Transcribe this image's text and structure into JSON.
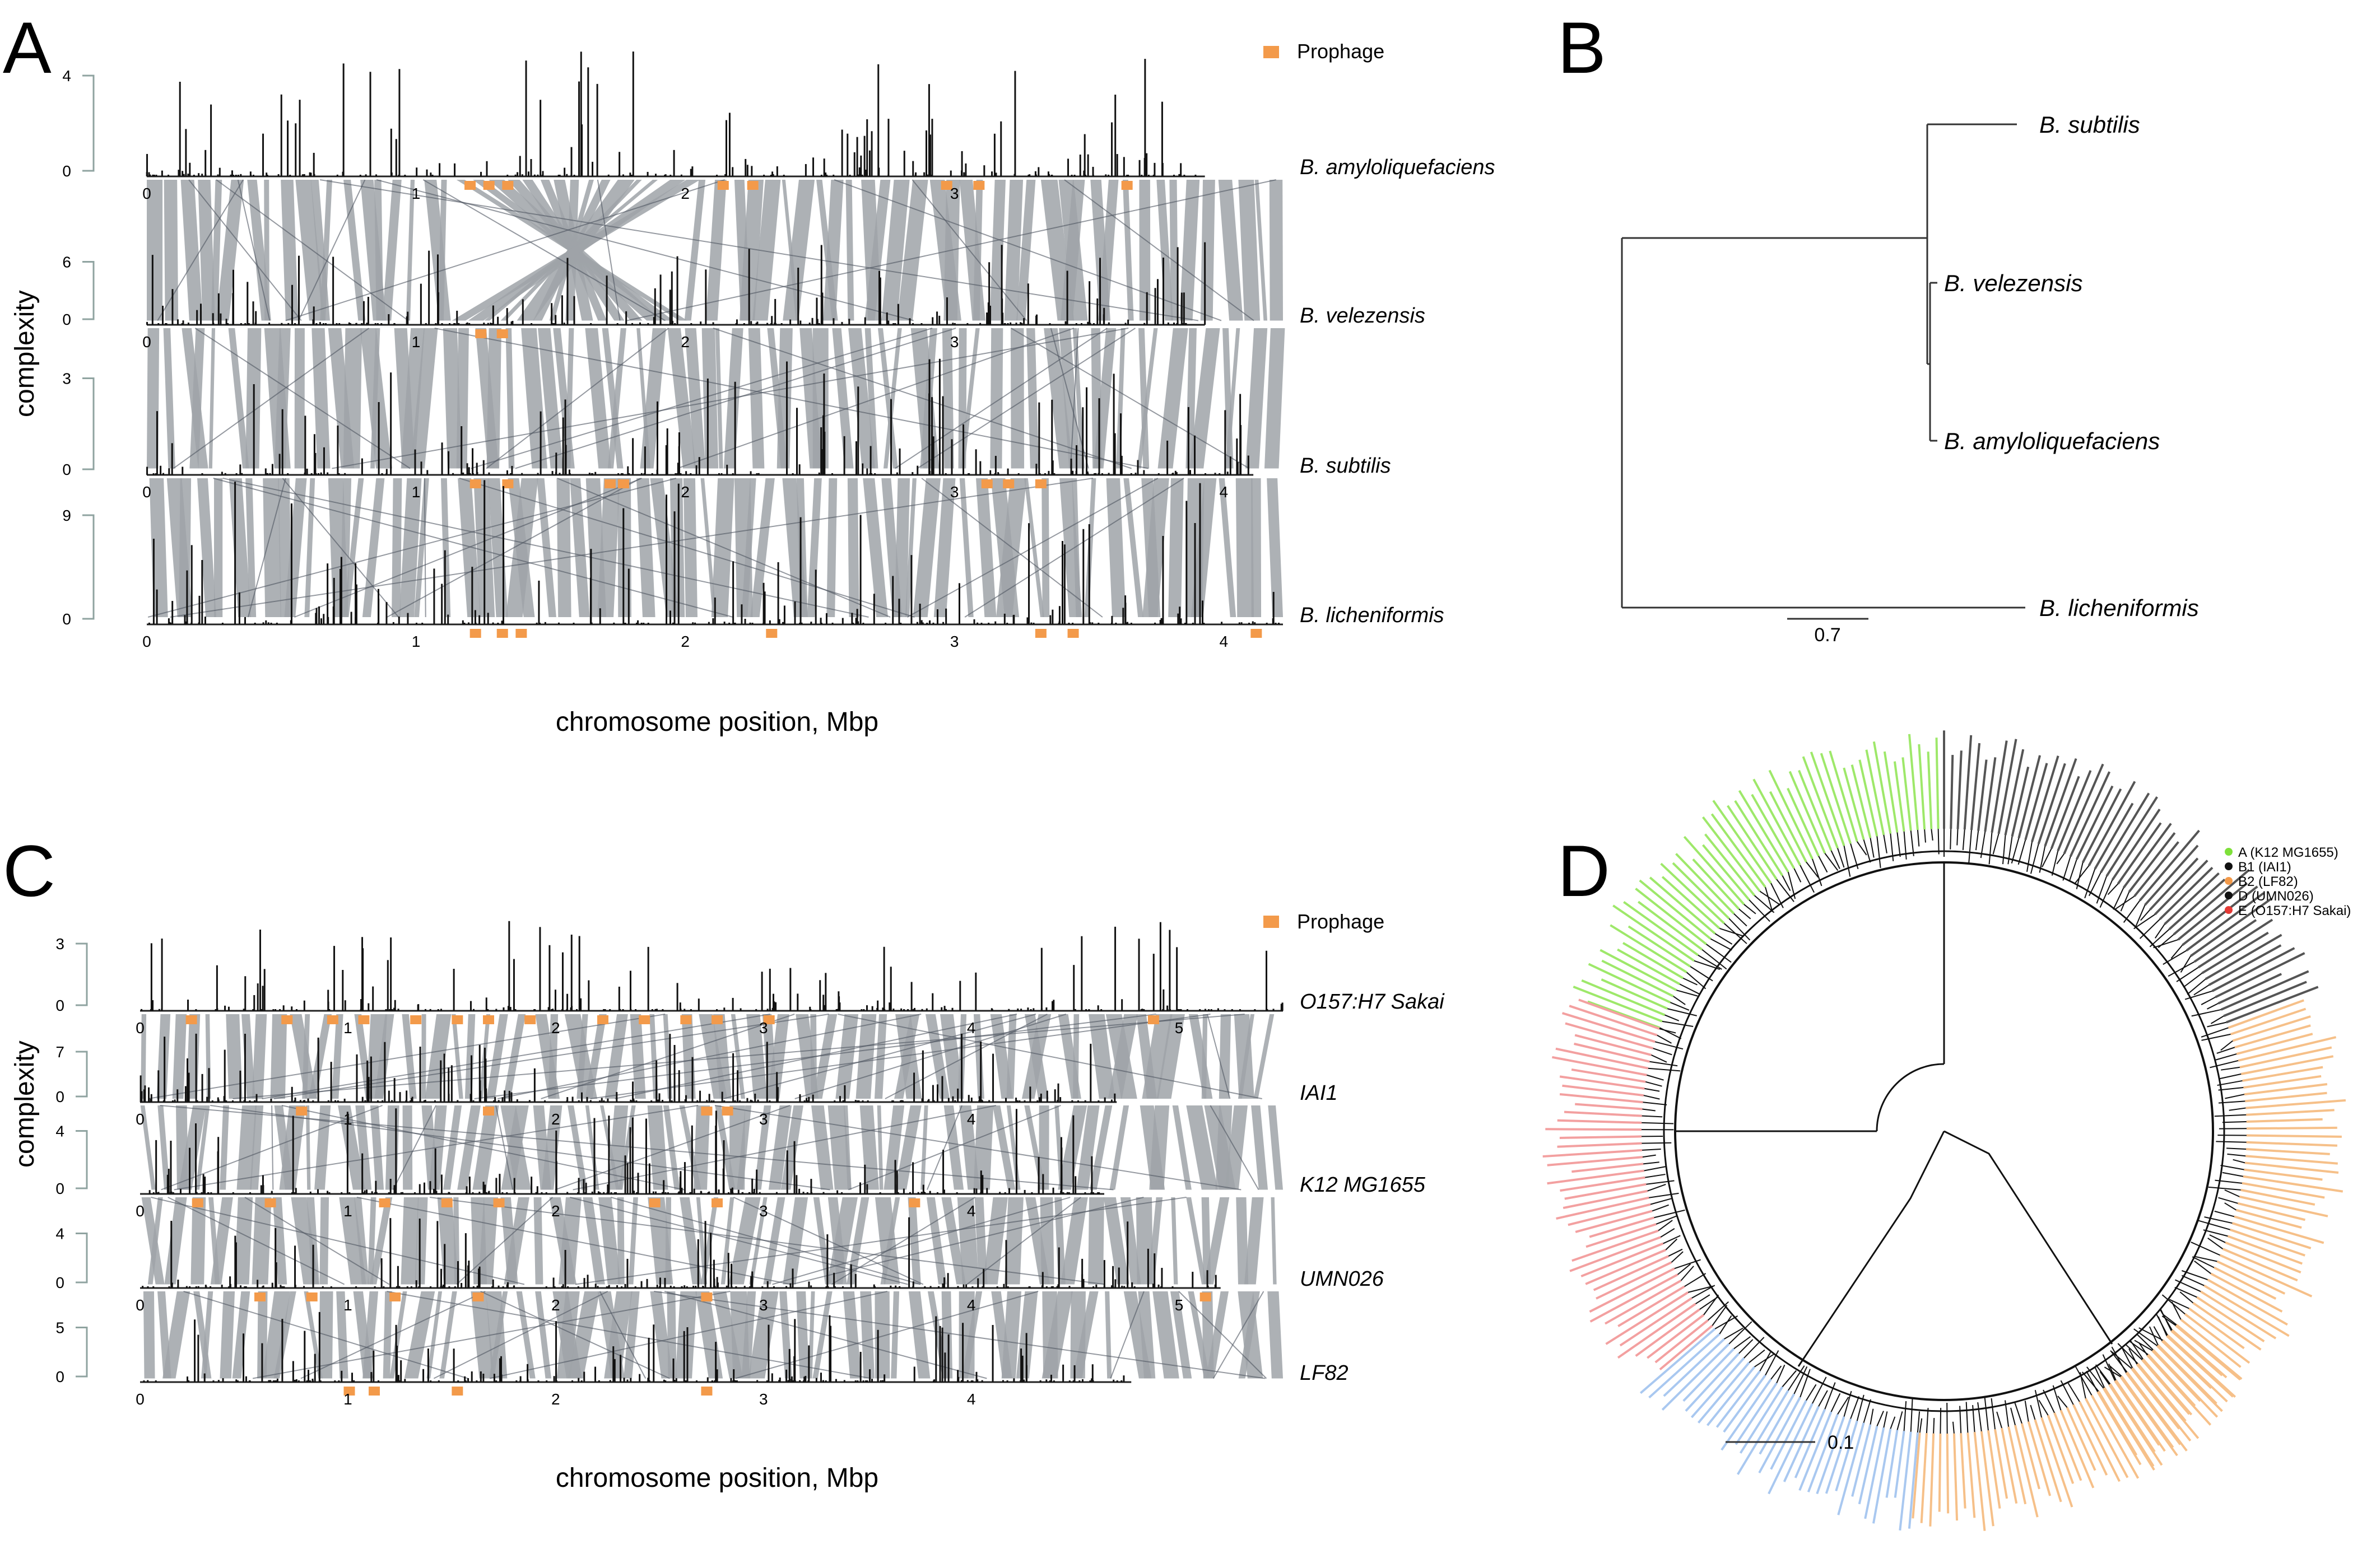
{
  "panels": [
    {
      "letter": "A"
    },
    {
      "letter": "B"
    },
    {
      "letter": "C"
    },
    {
      "letter": "D"
    }
  ],
  "legend": {
    "prophage_label": "Prophage",
    "prophage_color": "#f39a4a"
  },
  "colors": {
    "synteny": "#9fa3a8",
    "synteny_dark": "#4f5560",
    "peaks": "#111111",
    "axis_bracket": "#8fa3a0",
    "clade_A": "#9ee86a",
    "clade_B1": "#555555",
    "clade_B2": "#f6c089",
    "clade_D": "#a9c8f0",
    "clade_E": "#f3a0a0"
  },
  "chart_data": [
    {
      "type": "area",
      "panel": "A",
      "ylabel": "complexity",
      "xlabel": "chromosome position, Mbp",
      "tracks": [
        {
          "name": "B. amyloliquefaciens",
          "yticks": [
            "0",
            "4"
          ],
          "xticks": [
            "0",
            "1",
            "2",
            "3"
          ],
          "length_mbp": 3.93
        },
        {
          "name": "B. velezensis",
          "yticks": [
            "0",
            "6"
          ],
          "xticks": [
            "0",
            "1",
            "2",
            "3"
          ],
          "length_mbp": 3.93
        },
        {
          "name": "B. subtilis",
          "yticks": [
            "0",
            "3"
          ],
          "xticks": [
            "0",
            "1",
            "2",
            "3",
            "4"
          ],
          "length_mbp": 4.11
        },
        {
          "name": "B. licheniformis",
          "yticks": [
            "0",
            "9"
          ],
          "xticks": [
            "0",
            "1",
            "2",
            "3",
            "4"
          ],
          "length_mbp": 4.22
        }
      ]
    },
    {
      "type": "tree",
      "panel": "B",
      "leaves": [
        "B. subtilis",
        "B. velezensis",
        "B. amyloliquefaciens",
        "B. licheniformis"
      ],
      "scale_label": "0.7"
    },
    {
      "type": "area",
      "panel": "C",
      "ylabel": "complexity",
      "xlabel": "chromosome position, Mbp",
      "tracks": [
        {
          "name": "O157:H7 Sakai",
          "yticks": [
            "0",
            "3"
          ],
          "xticks": [
            "0",
            "1",
            "2",
            "3",
            "4",
            "5"
          ],
          "length_mbp": 5.5
        },
        {
          "name": "IAI1",
          "yticks": [
            "0",
            "7"
          ],
          "xticks": [
            "0",
            "1",
            "2",
            "3",
            "4"
          ],
          "length_mbp": 4.7
        },
        {
          "name": "K12 MG1655",
          "yticks": [
            "0",
            "4"
          ],
          "xticks": [
            "0",
            "1",
            "2",
            "3",
            "4"
          ],
          "length_mbp": 4.64
        },
        {
          "name": "UMN026",
          "yticks": [
            "0",
            "4"
          ],
          "xticks": [
            "0",
            "1",
            "2",
            "3",
            "4",
            "5"
          ],
          "length_mbp": 5.2
        },
        {
          "name": "LF82",
          "yticks": [
            "0",
            "5"
          ],
          "xticks": [
            "0",
            "1",
            "2",
            "3",
            "4"
          ],
          "length_mbp": 4.77
        }
      ]
    },
    {
      "type": "tree",
      "panel": "D",
      "legend": [
        "A (K12 MG1655)",
        "B1 (IAI1)",
        "B2 (LF82)",
        "D (UMN026)",
        "E (O157:H7 Sakai)"
      ],
      "scale_label": "0.1"
    }
  ]
}
